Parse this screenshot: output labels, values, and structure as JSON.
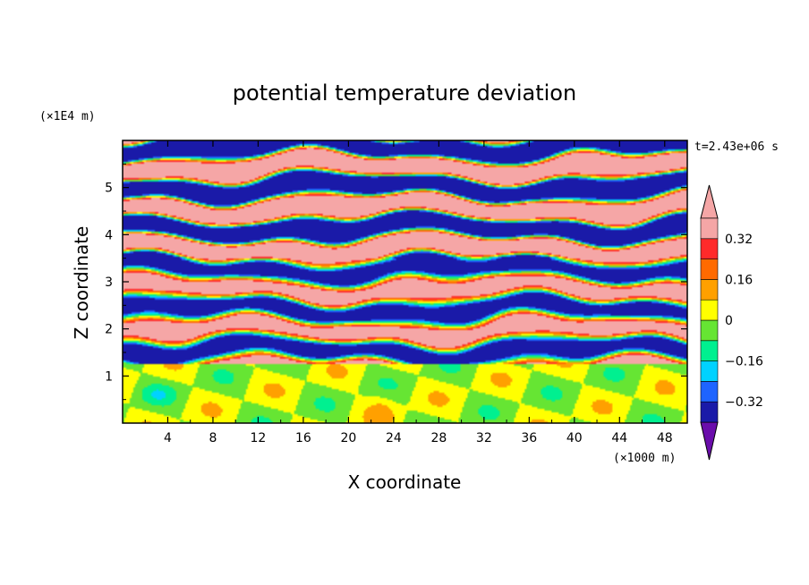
{
  "chart_data": {
    "type": "heatmap",
    "title": "potential temperature deviation",
    "xlabel": "X coordinate",
    "ylabel": "Z coordinate",
    "x_unit": "(×1000 m)",
    "y_unit": "(×1E4 m)",
    "time_label": "t=2.43e+06 s",
    "xlim": [
      0,
      50
    ],
    "ylim": [
      0,
      6
    ],
    "x_ticks": [
      4,
      8,
      12,
      16,
      20,
      24,
      28,
      32,
      36,
      40,
      44,
      48
    ],
    "x_tick_labels": [
      "4",
      "8",
      "12",
      "16",
      "20",
      "24",
      "28",
      "32",
      "36",
      "40",
      "44",
      "48"
    ],
    "y_ticks": [
      1,
      2,
      3,
      4,
      5
    ],
    "y_tick_labels": [
      "1",
      "2",
      "3",
      "4",
      "5"
    ],
    "colorbar": {
      "levels": [
        -0.4,
        -0.32,
        -0.24,
        -0.16,
        -0.08,
        0,
        0.08,
        0.16,
        0.24,
        0.32,
        0.4
      ],
      "labeled_levels": [
        0.32,
        0.16,
        0,
        -0.16,
        -0.32
      ],
      "labels": [
        "0.32",
        "0.16",
        "0",
        "−0.16",
        "−0.32"
      ],
      "colors": [
        "#6a0dab",
        "#1a1aa8",
        "#1e64ff",
        "#00d2ff",
        "#00f090",
        "#66e533",
        "#ffff00",
        "#ffa000",
        "#ff6a00",
        "#ff2a2a",
        "#f5a6a6"
      ],
      "extend": "both"
    },
    "grid": false
  }
}
